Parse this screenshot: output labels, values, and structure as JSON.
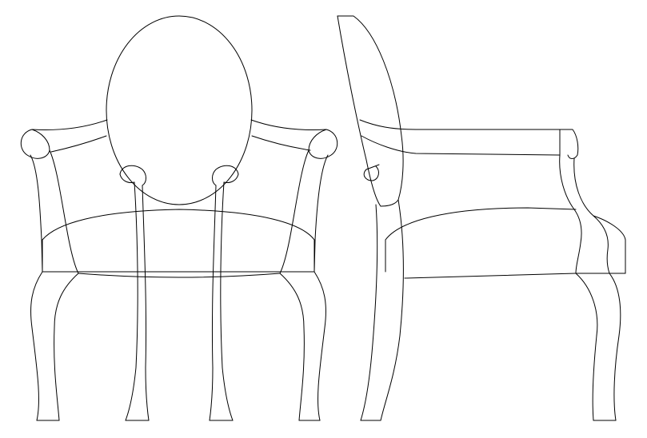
{
  "drawing": {
    "background": "#ffffff",
    "line_color": "#000000",
    "views": [
      {
        "name": "front-view"
      },
      {
        "name": "side-view"
      }
    ]
  }
}
